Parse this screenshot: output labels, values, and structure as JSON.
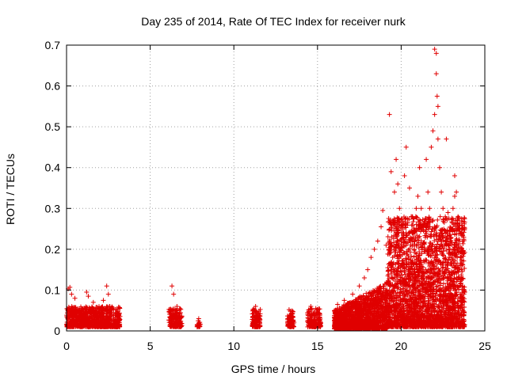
{
  "chart_data": {
    "type": "scatter",
    "title": "Day 235 of 2014, Rate Of TEC Index for receiver nurk",
    "xlabel": "GPS time / hours",
    "ylabel": "ROTI / TECUs",
    "xlim": [
      0,
      25
    ],
    "ylim": [
      0,
      0.7
    ],
    "xticks": [
      "0",
      "5",
      "10",
      "15",
      "20",
      "25"
    ],
    "yticks": [
      "0",
      "0.1",
      "0.2",
      "0.3",
      "0.4",
      "0.5",
      "0.6",
      "0.7"
    ],
    "grid": true,
    "marker": "+",
    "color": "#e00000",
    "series": [
      {
        "name": "ROTI",
        "clusters": [
          {
            "x": [
              0.0,
              3.2
            ],
            "ymin": 0.01,
            "ymax": 0.06,
            "n": 900
          },
          {
            "x": [
              6.1,
              6.9
            ],
            "ymin": 0.01,
            "ymax": 0.055,
            "n": 160
          },
          {
            "x": [
              7.8,
              8.0
            ],
            "ymin": 0.01,
            "ymax": 0.025,
            "n": 20
          },
          {
            "x": [
              11.1,
              11.6
            ],
            "ymin": 0.01,
            "ymax": 0.055,
            "n": 120
          },
          {
            "x": [
              13.2,
              13.6
            ],
            "ymin": 0.01,
            "ymax": 0.05,
            "n": 100
          },
          {
            "x": [
              14.4,
              15.2
            ],
            "ymin": 0.01,
            "ymax": 0.055,
            "n": 180
          },
          {
            "x": [
              16.0,
              19.2
            ],
            "ymin": 0.005,
            "ymax": 0.12,
            "n": 1500
          },
          {
            "x": [
              19.2,
              23.8
            ],
            "ymin": 0.01,
            "ymax": 0.28,
            "n": 2600
          }
        ],
        "points": [
          [
            0.1,
            0.103
          ],
          [
            0.2,
            0.107
          ],
          [
            0.3,
            0.09
          ],
          [
            0.5,
            0.08
          ],
          [
            1.2,
            0.095
          ],
          [
            1.3,
            0.085
          ],
          [
            1.6,
            0.07
          ],
          [
            2.2,
            0.075
          ],
          [
            2.4,
            0.11
          ],
          [
            2.5,
            0.09
          ],
          [
            3.0,
            0.045
          ],
          [
            6.3,
            0.11
          ],
          [
            6.4,
            0.09
          ],
          [
            6.6,
            0.06
          ],
          [
            7.9,
            0.03
          ],
          [
            11.3,
            0.06
          ],
          [
            13.3,
            0.052
          ],
          [
            14.6,
            0.06
          ],
          [
            14.9,
            0.055
          ],
          [
            16.2,
            0.065
          ],
          [
            16.6,
            0.075
          ],
          [
            17.1,
            0.09
          ],
          [
            17.5,
            0.11
          ],
          [
            17.8,
            0.13
          ],
          [
            18.0,
            0.15
          ],
          [
            18.2,
            0.18
          ],
          [
            18.4,
            0.2
          ],
          [
            18.6,
            0.22
          ],
          [
            18.8,
            0.255
          ],
          [
            18.9,
            0.295
          ],
          [
            19.1,
            0.21
          ],
          [
            19.3,
            0.53
          ],
          [
            19.4,
            0.39
          ],
          [
            19.6,
            0.34
          ],
          [
            19.7,
            0.42
          ],
          [
            19.8,
            0.36
          ],
          [
            19.9,
            0.3
          ],
          [
            20.1,
            0.25
          ],
          [
            20.2,
            0.38
          ],
          [
            20.3,
            0.45
          ],
          [
            20.5,
            0.35
          ],
          [
            20.6,
            0.28
          ],
          [
            20.8,
            0.22
          ],
          [
            20.9,
            0.3
          ],
          [
            21.0,
            0.33
          ],
          [
            21.1,
            0.4
          ],
          [
            21.2,
            0.3
          ],
          [
            21.4,
            0.26
          ],
          [
            21.5,
            0.42
          ],
          [
            21.6,
            0.34
          ],
          [
            21.7,
            0.3
          ],
          [
            21.8,
            0.45
          ],
          [
            21.9,
            0.49
          ],
          [
            22.0,
            0.53
          ],
          [
            22.0,
            0.69
          ],
          [
            22.1,
            0.68
          ],
          [
            22.1,
            0.63
          ],
          [
            22.15,
            0.575
          ],
          [
            22.2,
            0.55
          ],
          [
            22.2,
            0.47
          ],
          [
            22.3,
            0.4
          ],
          [
            22.4,
            0.34
          ],
          [
            22.5,
            0.3
          ],
          [
            22.7,
            0.47
          ],
          [
            22.8,
            0.29
          ],
          [
            23.0,
            0.25
          ],
          [
            23.1,
            0.3
          ],
          [
            23.2,
            0.38
          ],
          [
            23.3,
            0.34
          ],
          [
            23.4,
            0.28
          ],
          [
            23.5,
            0.22
          ],
          [
            23.6,
            0.15
          ],
          [
            23.2,
            0.33
          ]
        ]
      }
    ]
  }
}
